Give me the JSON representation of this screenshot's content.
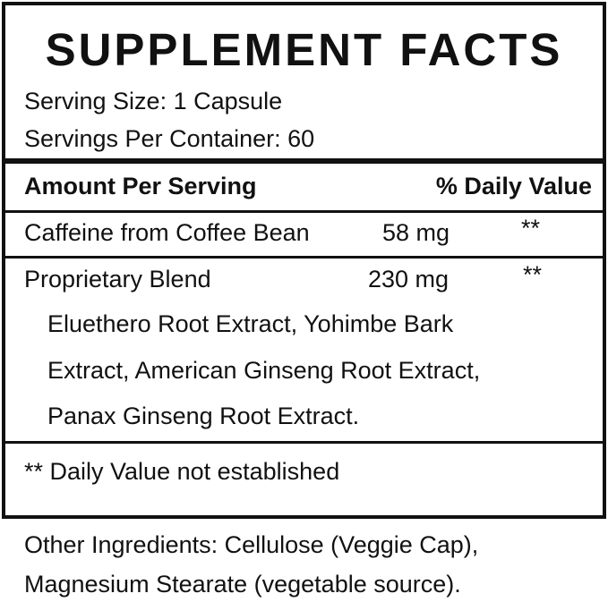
{
  "title": "SUPPLEMENT FACTS",
  "serving_size": "Serving Size: 1 Capsule",
  "servings_per_container": "Servings Per Container: 60",
  "header": {
    "amount": "Amount Per Serving",
    "dv": "% Daily Value"
  },
  "rows": [
    {
      "name": "Caffeine from Coffee Bean",
      "amount": "58 mg",
      "dv": "**"
    },
    {
      "name": "Proprietary Blend",
      "amount": "230 mg",
      "dv": "**"
    }
  ],
  "blend_lines": [
    "Eluethero Root Extract, Yohimbe Bark",
    "Extract, American Ginseng Root Extract,",
    "Panax Ginseng Root Extract."
  ],
  "footnote": "** Daily Value not established",
  "other_ingredients": [
    "Other Ingredients: Cellulose (Veggie Cap),",
    "Magnesium Stearate (vegetable source)."
  ]
}
